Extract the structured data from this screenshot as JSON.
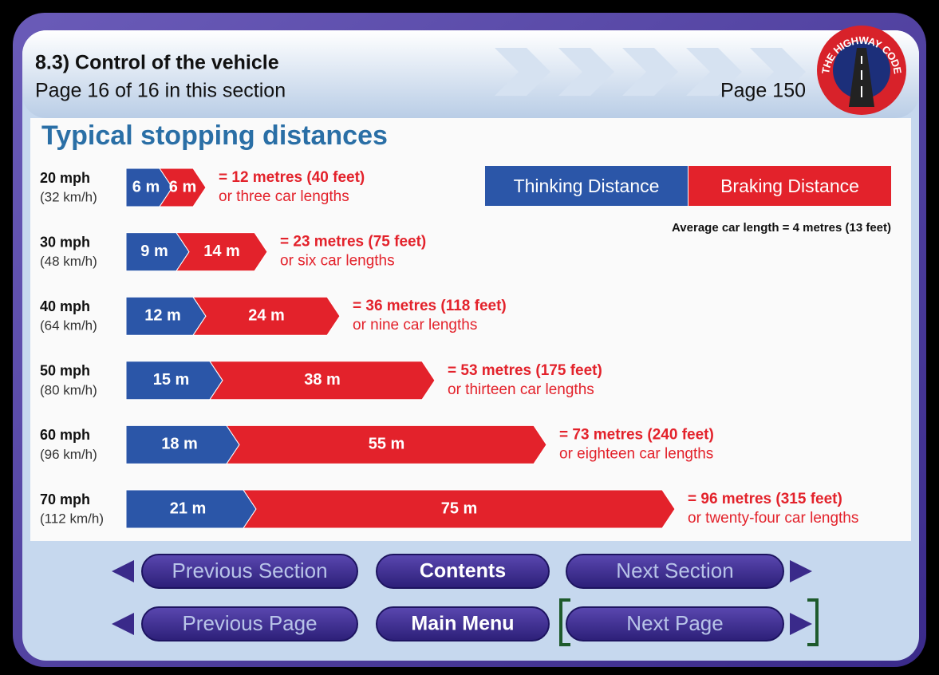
{
  "header": {
    "section": "8.3) Control of the vehicle",
    "page_in_section": "Page 16 of 16 in this section",
    "page": "Page 150",
    "logo": "THE HIGHWAY CODE"
  },
  "chart_data": {
    "type": "stacked-arrow-bar",
    "title": "Typical stopping distances",
    "categories": [
      "20 mph",
      "30 mph",
      "40 mph",
      "50 mph",
      "60 mph",
      "70 mph"
    ],
    "category_sublabels": [
      "(32 km/h)",
      "(48 km/h)",
      "(64 km/h)",
      "(80 km/h)",
      "(96 km/h)",
      "(112 km/h)"
    ],
    "series": [
      {
        "name": "Thinking Distance",
        "color": "#2b56a8",
        "values": [
          6,
          9,
          12,
          15,
          18,
          21
        ],
        "value_labels": [
          "6 m",
          "9 m",
          "12 m",
          "15 m",
          "18 m",
          "21 m"
        ]
      },
      {
        "name": "Braking Distance",
        "color": "#e3222b",
        "values": [
          6,
          14,
          24,
          38,
          55,
          75
        ],
        "value_labels": [
          "6 m",
          "14 m",
          "24 m",
          "38 m",
          "55 m",
          "75 m"
        ]
      }
    ],
    "totals": [
      "= 12 metres (40 feet)",
      "= 23 metres (75 feet)",
      "= 36 metres (118 feet)",
      "= 53 metres (175 feet)",
      "= 73 metres (240 feet)",
      "= 96 metres (315 feet)"
    ],
    "notes": [
      "or three car lengths",
      "or six car lengths",
      "or nine car lengths",
      "or thirteen car lengths",
      "or eighteen car lengths",
      "or twenty-four car lengths"
    ],
    "legend_note": "Average car length = 4 metres (13 feet)"
  },
  "nav": {
    "buttons": [
      "Previous Section",
      "Contents",
      "Next Section",
      "Previous Page",
      "Main Menu",
      "Next Page"
    ]
  }
}
